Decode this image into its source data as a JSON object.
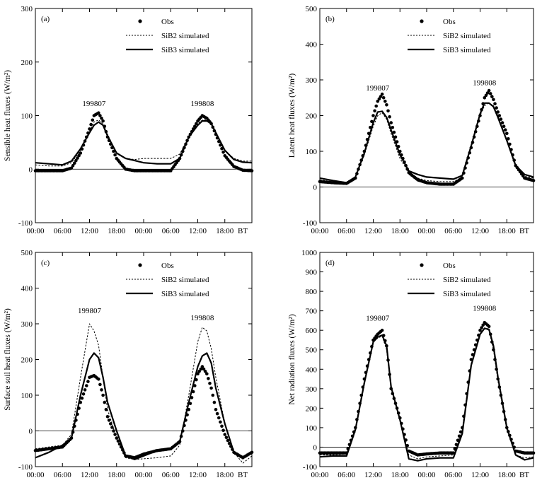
{
  "figure": {
    "x_tick_labels": [
      "00:00",
      "06:00",
      "12:00",
      "18:00",
      "00:00",
      "06:00",
      "12:00",
      "18:00"
    ],
    "x_unit_label": "BT",
    "legend": {
      "obs": "Obs",
      "sib2": "SiB2 simulated",
      "sib3": "SiB3 simulated"
    }
  },
  "chart_data": [
    {
      "panel": "(a)",
      "type": "line",
      "ylabel": "Sensible heat fluxes (W/m²)",
      "ylim": [
        -100,
        300
      ],
      "yticks": [
        -100,
        0,
        100,
        200,
        300
      ],
      "annotations": [
        {
          "text": "199807",
          "x_hour": 13,
          "y": 118
        },
        {
          "text": "199808",
          "x_hour": 37,
          "y": 118
        }
      ],
      "x_hours": [
        0,
        3,
        6,
        8,
        10,
        12,
        13,
        14,
        15,
        16,
        18,
        20,
        22,
        24,
        27,
        30,
        32,
        34,
        36,
        37,
        38,
        39,
        40,
        42,
        44,
        46,
        48
      ],
      "series": [
        {
          "name": "Obs",
          "style": "dots",
          "values": [
            -3,
            -3,
            -3,
            2,
            30,
            75,
            100,
            105,
            90,
            60,
            20,
            0,
            -3,
            -3,
            -3,
            -3,
            20,
            60,
            90,
            100,
            95,
            85,
            65,
            25,
            5,
            -2,
            -3
          ]
        },
        {
          "name": "SiB2 simulated",
          "style": "dashed",
          "values": [
            8,
            6,
            6,
            12,
            35,
            70,
            88,
            92,
            85,
            65,
            30,
            20,
            18,
            20,
            20,
            20,
            28,
            60,
            85,
            92,
            92,
            86,
            70,
            35,
            20,
            15,
            15
          ]
        },
        {
          "name": "SiB3 simulated",
          "style": "solid",
          "values": [
            12,
            10,
            8,
            15,
            38,
            68,
            82,
            88,
            82,
            62,
            30,
            20,
            16,
            12,
            10,
            10,
            20,
            60,
            82,
            90,
            90,
            85,
            68,
            35,
            18,
            13,
            12
          ]
        }
      ]
    },
    {
      "panel": "(b)",
      "type": "line",
      "ylabel": "Latent heat fluxes (W/m²)",
      "ylim": [
        -100,
        500
      ],
      "yticks": [
        -100,
        0,
        100,
        200,
        300,
        400,
        500
      ],
      "annotations": [
        {
          "text": "199807",
          "x_hour": 13,
          "y": 270
        },
        {
          "text": "199808",
          "x_hour": 37,
          "y": 285
        }
      ],
      "x_hours": [
        0,
        3,
        6,
        8,
        10,
        12,
        13,
        14,
        15,
        16,
        18,
        20,
        22,
        24,
        27,
        30,
        32,
        34,
        36,
        37,
        38,
        39,
        40,
        42,
        44,
        46,
        48
      ],
      "series": [
        {
          "name": "Obs",
          "style": "dots",
          "values": [
            15,
            12,
            10,
            25,
            100,
            200,
            240,
            260,
            230,
            180,
            100,
            40,
            20,
            12,
            8,
            8,
            25,
            110,
            200,
            250,
            270,
            245,
            210,
            150,
            60,
            25,
            18
          ]
        },
        {
          "name": "SiB2 simulated",
          "style": "dashed",
          "values": [
            20,
            15,
            12,
            28,
            90,
            170,
            200,
            208,
            190,
            150,
            80,
            40,
            25,
            18,
            15,
            15,
            28,
            110,
            200,
            228,
            235,
            228,
            200,
            130,
            55,
            30,
            25
          ]
        },
        {
          "name": "SiB3 simulated",
          "style": "solid",
          "values": [
            25,
            18,
            12,
            28,
            95,
            180,
            210,
            212,
            195,
            160,
            90,
            45,
            35,
            28,
            25,
            22,
            32,
            115,
            205,
            235,
            235,
            225,
            195,
            130,
            60,
            35,
            28
          ]
        }
      ]
    },
    {
      "panel": "(c)",
      "type": "line",
      "ylabel": "Surface soil heat fluxes (W/m²)",
      "ylim": [
        -100,
        500
      ],
      "yticks": [
        -100,
        0,
        100,
        200,
        300,
        400,
        500
      ],
      "annotations": [
        {
          "text": "199807",
          "x_hour": 12,
          "y": 330
        },
        {
          "text": "199808",
          "x_hour": 37,
          "y": 310
        }
      ],
      "x_hours": [
        0,
        3,
        6,
        8,
        10,
        12,
        13,
        14,
        15,
        16,
        18,
        20,
        22,
        24,
        27,
        30,
        32,
        34,
        36,
        37,
        38,
        39,
        40,
        42,
        44,
        46,
        48
      ],
      "series": [
        {
          "name": "Obs",
          "style": "dots",
          "values": [
            -55,
            -50,
            -45,
            -20,
            80,
            150,
            155,
            145,
            100,
            40,
            -20,
            -70,
            -75,
            -65,
            -55,
            -50,
            -30,
            60,
            160,
            180,
            160,
            120,
            60,
            -10,
            -60,
            -75,
            -60
          ]
        },
        {
          "name": "SiB2 simulated",
          "style": "dashed",
          "values": [
            -50,
            -45,
            -40,
            -10,
            150,
            300,
            280,
            240,
            150,
            60,
            -20,
            -75,
            -80,
            -78,
            -75,
            -70,
            -40,
            100,
            250,
            290,
            280,
            230,
            150,
            20,
            -60,
            -90,
            -70
          ]
        },
        {
          "name": "SiB3 simulated",
          "style": "solid",
          "values": [
            -75,
            -60,
            -40,
            -20,
            100,
            200,
            218,
            205,
            150,
            80,
            0,
            -70,
            -80,
            -70,
            -55,
            -50,
            -30,
            80,
            180,
            210,
            218,
            190,
            120,
            20,
            -60,
            -75,
            -60
          ]
        }
      ]
    },
    {
      "panel": "(d)",
      "type": "line",
      "ylabel": "Net radiation fluxes (W/m²)",
      "ylim": [
        -100,
        1000
      ],
      "yticks": [
        -100,
        0,
        100,
        200,
        300,
        400,
        500,
        600,
        700,
        800,
        900,
        1000
      ],
      "annotations": [
        {
          "text": "199807",
          "x_hour": 13,
          "y": 650
        },
        {
          "text": "199808",
          "x_hour": 37,
          "y": 700
        }
      ],
      "x_hours": [
        0,
        3,
        6,
        8,
        10,
        12,
        13,
        14,
        15,
        16,
        18,
        20,
        22,
        24,
        27,
        30,
        32,
        34,
        36,
        37,
        38,
        39,
        40,
        42,
        44,
        46,
        48
      ],
      "series": [
        {
          "name": "Obs",
          "style": "dots",
          "values": [
            -30,
            -30,
            -30,
            100,
            350,
            550,
            580,
            600,
            520,
            300,
            150,
            -20,
            -40,
            -35,
            -30,
            -30,
            100,
            450,
            600,
            640,
            620,
            500,
            350,
            100,
            -20,
            -30,
            -30
          ]
        },
        {
          "name": "SiB2 simulated",
          "style": "dashed",
          "values": [
            -40,
            -40,
            -35,
            100,
            340,
            540,
            560,
            570,
            500,
            300,
            140,
            -40,
            -60,
            -50,
            -45,
            -40,
            90,
            430,
            580,
            610,
            600,
            500,
            340,
            90,
            -40,
            -55,
            -50
          ]
        },
        {
          "name": "SiB3 simulated",
          "style": "solid",
          "values": [
            -50,
            -45,
            -45,
            90,
            330,
            540,
            565,
            575,
            520,
            310,
            140,
            -60,
            -70,
            -60,
            -55,
            -55,
            70,
            420,
            580,
            610,
            605,
            520,
            360,
            100,
            -40,
            -65,
            -55
          ]
        }
      ]
    }
  ]
}
